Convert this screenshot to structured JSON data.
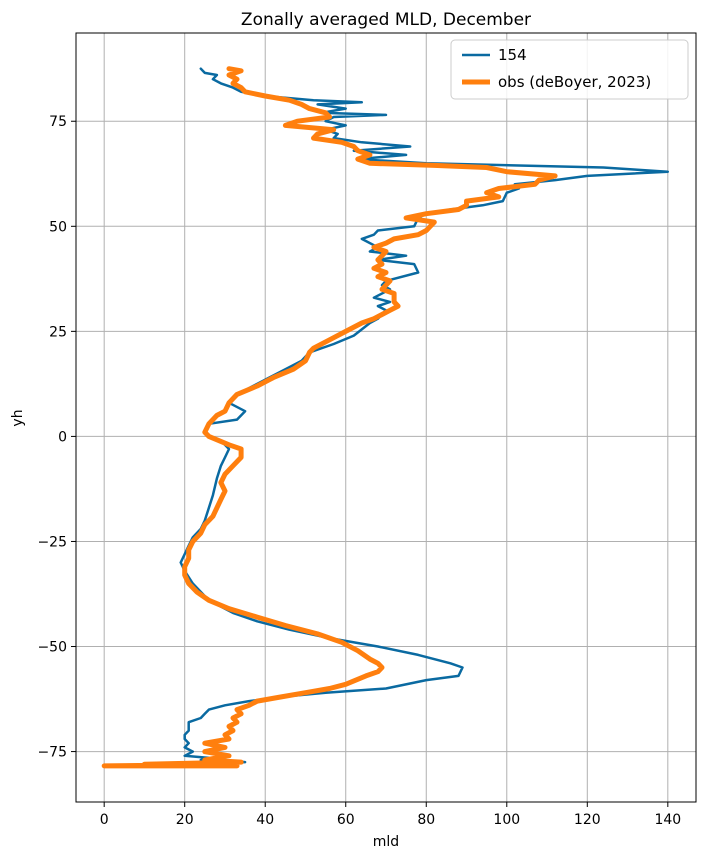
{
  "chart_data": {
    "type": "line",
    "title": "Zonally averaged MLD, December",
    "xlabel": "mld",
    "ylabel": "yh",
    "xlim": [
      -7,
      147
    ],
    "ylim": [
      -87,
      96
    ],
    "xticks": [
      0,
      20,
      40,
      60,
      80,
      100,
      120,
      140
    ],
    "yticks": [
      -75,
      -50,
      -25,
      0,
      25,
      50,
      75
    ],
    "xtick_labels": [
      "0",
      "20",
      "40",
      "60",
      "80",
      "100",
      "120",
      "140"
    ],
    "ytick_labels": [
      "−75",
      "−50",
      "−25",
      "0",
      "25",
      "50",
      "75"
    ],
    "grid": true,
    "legend_position": "top-right",
    "series": [
      {
        "name": "154",
        "color": "#0a6aa1",
        "width": 2.5,
        "points": [
          [
            24,
            87.5
          ],
          [
            25,
            86.5
          ],
          [
            28,
            86
          ],
          [
            27,
            85
          ],
          [
            29,
            84
          ],
          [
            32,
            83
          ],
          [
            34,
            82
          ],
          [
            40,
            81
          ],
          [
            52,
            80
          ],
          [
            64,
            79.5
          ],
          [
            53,
            79
          ],
          [
            60,
            78
          ],
          [
            54,
            77
          ],
          [
            70,
            76.5
          ],
          [
            57,
            76
          ],
          [
            55,
            75
          ],
          [
            60,
            74
          ],
          [
            55,
            73
          ],
          [
            58,
            72
          ],
          [
            57,
            71
          ],
          [
            64,
            70
          ],
          [
            76,
            69
          ],
          [
            62,
            68
          ],
          [
            75,
            67
          ],
          [
            63,
            66
          ],
          [
            80,
            65
          ],
          [
            124,
            64
          ],
          [
            132,
            63.5
          ],
          [
            140,
            63
          ],
          [
            120,
            62
          ],
          [
            112,
            61
          ],
          [
            102,
            60
          ],
          [
            103,
            59
          ],
          [
            100,
            58
          ],
          [
            99,
            56
          ],
          [
            94,
            55
          ],
          [
            86,
            54
          ],
          [
            80,
            53
          ],
          [
            78,
            52
          ],
          [
            77,
            50
          ],
          [
            68,
            49
          ],
          [
            67,
            48
          ],
          [
            64,
            47
          ],
          [
            68,
            45
          ],
          [
            66,
            44
          ],
          [
            75,
            43
          ],
          [
            68,
            42
          ],
          [
            77,
            41
          ],
          [
            78,
            39
          ],
          [
            70,
            37
          ],
          [
            69,
            36
          ],
          [
            71,
            35
          ],
          [
            67,
            33
          ],
          [
            71,
            32
          ],
          [
            68,
            31
          ],
          [
            70,
            30
          ],
          [
            68,
            28
          ],
          [
            66,
            27
          ],
          [
            62,
            24
          ],
          [
            57,
            22
          ],
          [
            51,
            20
          ],
          [
            49,
            18
          ],
          [
            45,
            16
          ],
          [
            41,
            14
          ],
          [
            37,
            12
          ],
          [
            33,
            10
          ],
          [
            31,
            8
          ],
          [
            35,
            6
          ],
          [
            33,
            4
          ],
          [
            26,
            3
          ],
          [
            25,
            1
          ],
          [
            26,
            0
          ],
          [
            29,
            -1
          ],
          [
            31,
            -3
          ],
          [
            30,
            -5
          ],
          [
            29,
            -7
          ],
          [
            28,
            -10
          ],
          [
            27,
            -14
          ],
          [
            26,
            -17
          ],
          [
            25,
            -20
          ],
          [
            24,
            -22
          ],
          [
            22,
            -24
          ],
          [
            21,
            -26
          ],
          [
            20,
            -28
          ],
          [
            19,
            -30
          ],
          [
            20,
            -32
          ],
          [
            22,
            -35
          ],
          [
            25,
            -38
          ],
          [
            28,
            -40
          ],
          [
            32,
            -42
          ],
          [
            38,
            -44
          ],
          [
            46,
            -46
          ],
          [
            56,
            -48
          ],
          [
            68,
            -50
          ],
          [
            78,
            -52
          ],
          [
            86,
            -54
          ],
          [
            89,
            -55
          ],
          [
            88,
            -57
          ],
          [
            80,
            -58
          ],
          [
            70,
            -60
          ],
          [
            55,
            -61
          ],
          [
            44,
            -62
          ],
          [
            36,
            -63
          ],
          [
            30,
            -64
          ],
          [
            26,
            -65
          ],
          [
            25,
            -66
          ],
          [
            24,
            -67
          ],
          [
            21,
            -68
          ],
          [
            21,
            -70
          ],
          [
            20,
            -71
          ],
          [
            20,
            -72
          ],
          [
            21,
            -73
          ],
          [
            20,
            -74
          ],
          [
            22,
            -75
          ],
          [
            20,
            -76
          ],
          [
            26,
            -76.5
          ],
          [
            24,
            -77
          ],
          [
            30,
            -77
          ],
          [
            35,
            -77.5
          ],
          [
            22,
            -78
          ],
          [
            12,
            -78.2
          ]
        ]
      },
      {
        "name": "obs (deBoyer, 2023)",
        "color": "#ff7f0e",
        "width": 5,
        "points": [
          [
            31,
            87.5
          ],
          [
            34,
            87
          ],
          [
            31,
            86
          ],
          [
            33,
            85
          ],
          [
            32,
            84
          ],
          [
            34,
            83
          ],
          [
            35,
            82
          ],
          [
            40,
            81
          ],
          [
            46,
            80
          ],
          [
            49,
            79
          ],
          [
            51,
            78
          ],
          [
            55,
            77
          ],
          [
            56,
            76
          ],
          [
            48,
            75
          ],
          [
            45,
            74
          ],
          [
            57,
            73
          ],
          [
            53,
            72
          ],
          [
            52,
            71
          ],
          [
            59,
            70
          ],
          [
            62,
            69
          ],
          [
            63,
            68
          ],
          [
            66,
            67
          ],
          [
            63,
            66
          ],
          [
            66,
            65
          ],
          [
            82,
            64.5
          ],
          [
            95,
            64
          ],
          [
            100,
            63
          ],
          [
            112,
            62
          ],
          [
            108,
            61
          ],
          [
            107,
            60
          ],
          [
            98,
            59
          ],
          [
            95,
            58
          ],
          [
            98,
            57
          ],
          [
            90,
            56
          ],
          [
            90,
            55
          ],
          [
            88,
            54
          ],
          [
            80,
            53
          ],
          [
            75,
            52
          ],
          [
            82,
            51
          ],
          [
            81,
            50
          ],
          [
            80,
            49
          ],
          [
            78,
            48
          ],
          [
            72,
            47
          ],
          [
            70,
            46
          ],
          [
            67,
            45
          ],
          [
            70,
            44
          ],
          [
            69,
            43
          ],
          [
            68,
            42
          ],
          [
            69,
            41
          ],
          [
            67,
            40
          ],
          [
            70,
            39
          ],
          [
            68,
            38
          ],
          [
            71,
            37
          ],
          [
            69,
            35
          ],
          [
            72,
            34
          ],
          [
            72,
            32
          ],
          [
            73,
            31
          ],
          [
            71,
            30
          ],
          [
            67,
            28
          ],
          [
            64,
            27
          ],
          [
            60,
            25
          ],
          [
            56,
            23
          ],
          [
            52,
            21
          ],
          [
            51,
            20
          ],
          [
            50,
            18
          ],
          [
            47,
            16
          ],
          [
            42,
            14
          ],
          [
            38,
            12
          ],
          [
            33,
            10
          ],
          [
            31,
            8
          ],
          [
            30,
            6
          ],
          [
            28,
            5
          ],
          [
            26,
            3
          ],
          [
            25,
            1
          ],
          [
            26,
            0
          ],
          [
            31,
            -2
          ],
          [
            34,
            -3
          ],
          [
            34,
            -5
          ],
          [
            32,
            -7
          ],
          [
            30,
            -9
          ],
          [
            29,
            -11
          ],
          [
            30,
            -13
          ],
          [
            29,
            -15
          ],
          [
            28,
            -17
          ],
          [
            27,
            -19
          ],
          [
            25,
            -21
          ],
          [
            24,
            -23
          ],
          [
            22,
            -25
          ],
          [
            21,
            -27
          ],
          [
            21,
            -29
          ],
          [
            20,
            -31
          ],
          [
            20,
            -33
          ],
          [
            21,
            -35
          ],
          [
            23,
            -37
          ],
          [
            26,
            -39
          ],
          [
            31,
            -41
          ],
          [
            38,
            -43
          ],
          [
            45,
            -45
          ],
          [
            53,
            -47
          ],
          [
            59,
            -49
          ],
          [
            63,
            -51
          ],
          [
            66,
            -53
          ],
          [
            68,
            -54
          ],
          [
            69,
            -55
          ],
          [
            68,
            -56
          ],
          [
            65,
            -57
          ],
          [
            60,
            -59
          ],
          [
            56,
            -60
          ],
          [
            50,
            -61
          ],
          [
            44,
            -62
          ],
          [
            38,
            -63
          ],
          [
            36,
            -64
          ],
          [
            33,
            -65
          ],
          [
            34,
            -66
          ],
          [
            32,
            -67
          ],
          [
            33,
            -68
          ],
          [
            31,
            -69
          ],
          [
            32,
            -70
          ],
          [
            30,
            -71
          ],
          [
            31,
            -72
          ],
          [
            25,
            -73
          ],
          [
            30,
            -74
          ],
          [
            25,
            -75
          ],
          [
            31,
            -76
          ],
          [
            25,
            -77
          ],
          [
            34,
            -77.5
          ],
          [
            10,
            -78
          ],
          [
            20,
            -78.2
          ],
          [
            0,
            -78.4
          ],
          [
            33,
            -78.4
          ]
        ]
      }
    ]
  }
}
